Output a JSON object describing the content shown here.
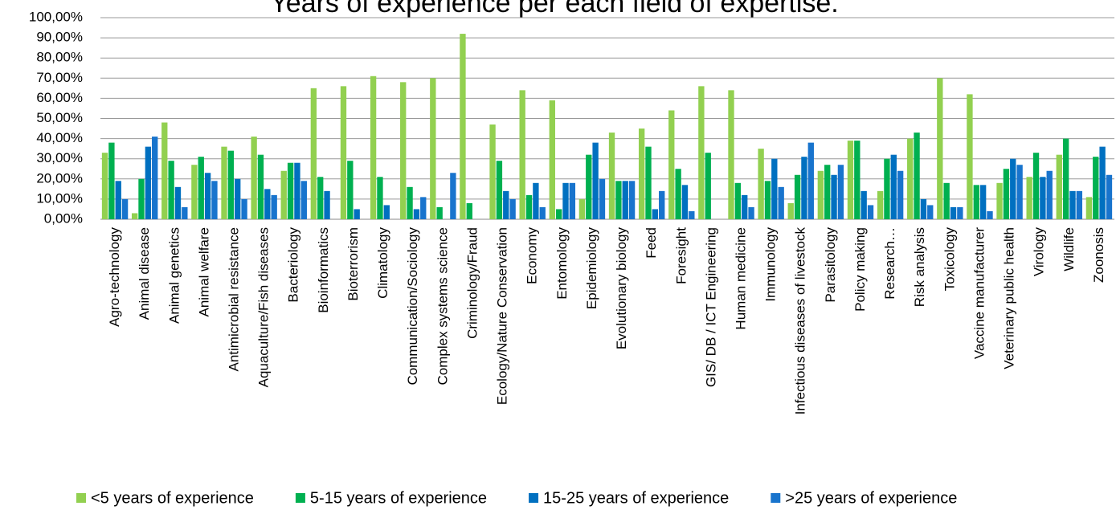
{
  "chart_data": {
    "type": "bar",
    "title": "Years of experience per each field of expertise.",
    "categories": [
      "Agro-technology",
      "Animal disease",
      "Animal genetics",
      "Animal welfare",
      "Antimicrobial resistance",
      "Aquaculture/Fish diseases",
      "Bacteriology",
      "Bioinformatics",
      "Bioterrorism",
      "Climatology",
      "Communication/Sociology",
      "Complex systems science",
      "Criminology/Fraud",
      "Ecology/Nature Conservation",
      "Economy",
      "Entomology",
      "Epidemiology",
      "Evolutionary biology",
      "Feed",
      "Foresight",
      "GIS/ DB / ICT Engineering",
      "Human medicine",
      "Immunology",
      "Infectious diseases of livestock",
      "Parasitology",
      "Policy making",
      "Research…",
      "Risk analysis",
      "Toxicology",
      "Vaccine manufacturer",
      "Veterinary public health",
      "Virology",
      "Wildlife",
      "Zoonosis"
    ],
    "series": [
      {
        "name": "<5 years of experience",
        "color": "#92d050",
        "values": [
          33,
          3,
          48,
          27,
          36,
          41,
          24,
          65,
          66,
          71,
          68,
          70,
          92,
          47,
          64,
          59,
          10,
          43,
          45,
          54,
          66,
          64,
          35,
          8,
          24,
          39,
          14,
          40,
          70,
          62,
          18,
          21,
          32,
          11
        ]
      },
      {
        "name": "5-15 years of experience",
        "color": "#00b050",
        "values": [
          38,
          20,
          29,
          31,
          34,
          32,
          28,
          21,
          29,
          21,
          16,
          6,
          8,
          29,
          12,
          5,
          32,
          19,
          36,
          25,
          33,
          18,
          19,
          22,
          27,
          39,
          30,
          43,
          18,
          17,
          25,
          33,
          40,
          31
        ]
      },
      {
        "name": "15-25 years of experience",
        "color": "#0070c0",
        "values": [
          19,
          36,
          16,
          23,
          20,
          15,
          28,
          14,
          5,
          7,
          5,
          0,
          0,
          14,
          18,
          18,
          38,
          19,
          5,
          17,
          0,
          12,
          30,
          31,
          22,
          14,
          32,
          10,
          6,
          17,
          30,
          21,
          14,
          36
        ]
      },
      {
        "name": ">25 years of experience",
        "color": "#1874cd",
        "values": [
          10,
          41,
          6,
          19,
          10,
          12,
          19,
          0,
          0,
          0,
          11,
          23,
          0,
          10,
          6,
          18,
          20,
          19,
          14,
          4,
          0,
          6,
          16,
          38,
          27,
          7,
          24,
          7,
          6,
          4,
          27,
          24,
          14,
          22
        ]
      }
    ],
    "ylim": [
      0,
      100
    ],
    "yticks": [
      {
        "value": 0,
        "label": "0,00%"
      },
      {
        "value": 10,
        "label": "10,00%"
      },
      {
        "value": 20,
        "label": "20,00%"
      },
      {
        "value": 30,
        "label": "30,00%"
      },
      {
        "value": 40,
        "label": "40,00%"
      },
      {
        "value": 50,
        "label": "50,00%"
      },
      {
        "value": 60,
        "label": "60,00%"
      },
      {
        "value": 70,
        "label": "70,00%"
      },
      {
        "value": 80,
        "label": "80,00%"
      },
      {
        "value": 90,
        "label": "90,00%"
      },
      {
        "value": 100,
        "label": "100,00%"
      }
    ],
    "grid": true,
    "legend": "bottom"
  }
}
